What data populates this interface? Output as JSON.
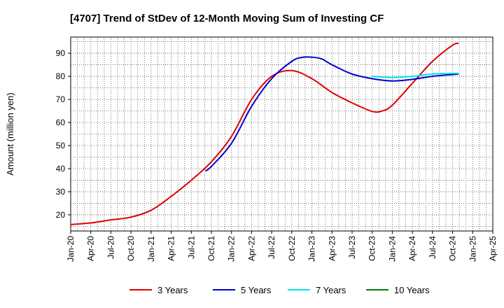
{
  "chart_data": {
    "type": "line",
    "title": "[4707]  Trend of StDev of 12-Month Moving Sum of Investing CF",
    "xlabel": "",
    "ylabel": "Amount (million yen)",
    "ylim": [
      13,
      97
    ],
    "yticks": [
      20,
      30,
      40,
      50,
      60,
      70,
      80,
      90
    ],
    "x_tick_labels": [
      "Jan-20",
      "Apr-20",
      "Jul-20",
      "Oct-20",
      "Jan-21",
      "Apr-21",
      "Jul-21",
      "Oct-21",
      "Jan-22",
      "Apr-22",
      "Jul-22",
      "Oct-22",
      "Jan-23",
      "Apr-23",
      "Jul-23",
      "Oct-23",
      "Jan-24",
      "Apr-24",
      "Jul-24",
      "Oct-24",
      "Jan-25",
      "Apr-25"
    ],
    "x_range_quarters": [
      0,
      21
    ],
    "grid": true,
    "legend_position": "bottom",
    "series": [
      {
        "name": "3 Years",
        "color": "#e00000",
        "points": [
          [
            0,
            15.8
          ],
          [
            1,
            16.5
          ],
          [
            2,
            17.8
          ],
          [
            3,
            19.0
          ],
          [
            4,
            22.0
          ],
          [
            5,
            28.0
          ],
          [
            6,
            35.0
          ],
          [
            7,
            43.0
          ],
          [
            8,
            54.0
          ],
          [
            9,
            70.0
          ],
          [
            10,
            80.0
          ],
          [
            11,
            82.5
          ],
          [
            12,
            79.0
          ],
          [
            13,
            73.0
          ],
          [
            14,
            68.5
          ],
          [
            15,
            64.8
          ],
          [
            15.5,
            65.0
          ],
          [
            16,
            67.5
          ],
          [
            17,
            77.0
          ],
          [
            18,
            86.5
          ],
          [
            19,
            93.5
          ],
          [
            19.3,
            94.3
          ]
        ]
      },
      {
        "name": "5 Years",
        "color": "#0000cc",
        "points": [
          [
            6.7,
            39.0
          ],
          [
            7,
            41.0
          ],
          [
            8,
            51.0
          ],
          [
            9,
            67.0
          ],
          [
            10,
            79.0
          ],
          [
            11,
            86.5
          ],
          [
            11.5,
            88.2
          ],
          [
            12,
            88.3
          ],
          [
            12.5,
            87.5
          ],
          [
            13,
            85.0
          ],
          [
            14,
            81.0
          ],
          [
            15,
            79.0
          ],
          [
            16,
            78.0
          ],
          [
            17,
            78.7
          ],
          [
            18,
            80.0
          ],
          [
            19,
            80.8
          ],
          [
            19.3,
            81.0
          ]
        ]
      },
      {
        "name": "7 Years",
        "color": "#00e5ee",
        "points": [
          [
            15,
            80.0
          ],
          [
            16,
            79.5
          ],
          [
            17,
            80.0
          ],
          [
            18,
            81.0
          ],
          [
            19,
            81.3
          ],
          [
            19.3,
            81.3
          ]
        ]
      },
      {
        "name": "10 Years",
        "color": "#008000",
        "points": []
      }
    ]
  }
}
